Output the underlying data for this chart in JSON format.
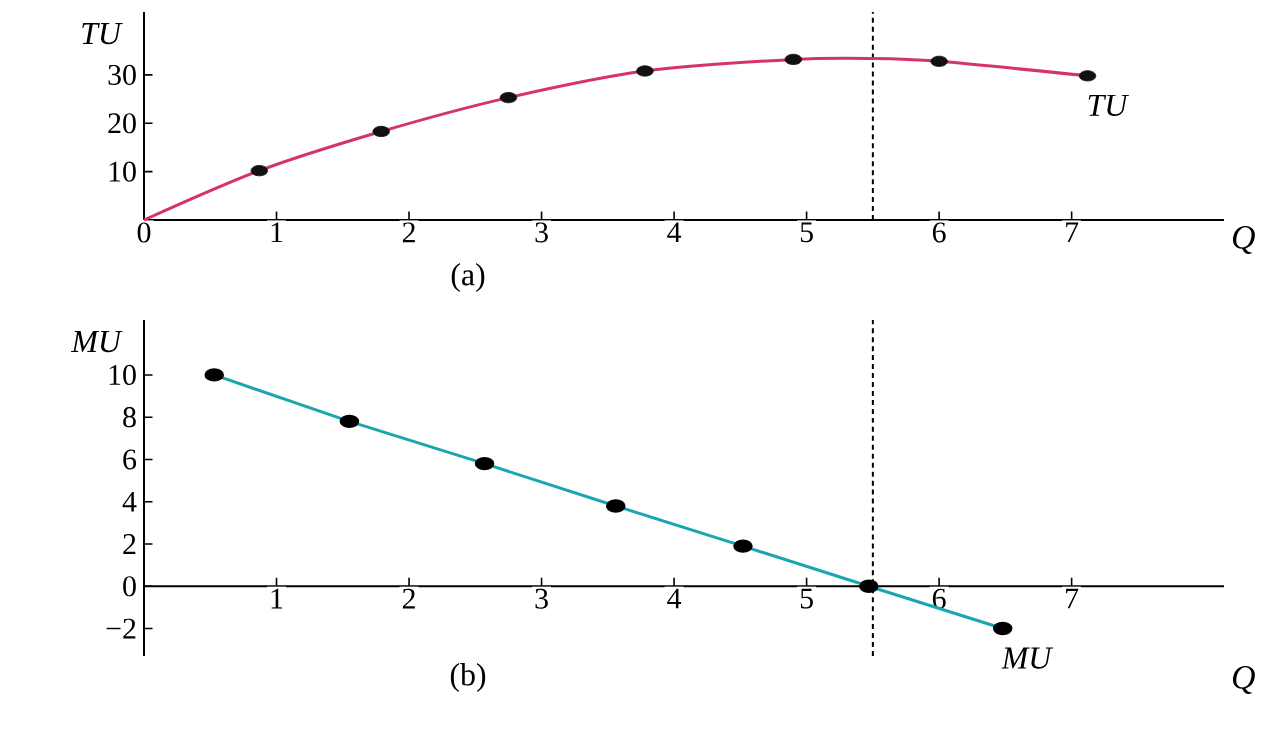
{
  "chart_data": [
    {
      "type": "line",
      "title": "(a)",
      "xlabel": "Q",
      "ylabel": "TU",
      "xlim": [
        0,
        8.15
      ],
      "ylim": [
        0,
        43
      ],
      "xticks": [
        0,
        1,
        2,
        3,
        4,
        5,
        6,
        7
      ],
      "yticks": [
        10,
        20,
        30
      ],
      "series": [
        {
          "name": "TU",
          "color": "#d6336c",
          "x": [
            0,
            0.87,
            1.79,
            2.75,
            3.78,
            4.9,
            5.5,
            6.0,
            7.12
          ],
          "values": [
            0,
            10.2,
            18.3,
            25.3,
            30.8,
            33.2,
            33.4,
            32.8,
            29.8
          ]
        },
        {
          "type": "scatter",
          "color": "#111111",
          "marker": "circle",
          "x": [
            0.87,
            1.79,
            2.75,
            3.78,
            4.9,
            6.0,
            7.12
          ],
          "values": [
            10.2,
            18.3,
            25.3,
            30.8,
            33.2,
            32.8,
            29.8
          ]
        }
      ],
      "ref_lines": [
        {
          "axis": "x",
          "value": 5.5,
          "line_style": "dashed"
        }
      ]
    },
    {
      "type": "line",
      "title": "(b)",
      "xlabel": "Q",
      "ylabel": "MU",
      "xlim": [
        0,
        8.15
      ],
      "ylim": [
        -3.3,
        12.6
      ],
      "xticks": [
        1,
        2,
        3,
        4,
        5,
        6,
        7
      ],
      "yticks": [
        {
          "value": -2,
          "label": "−2"
        },
        0,
        2,
        4,
        6,
        8,
        10
      ],
      "series": [
        {
          "name": "MU",
          "color": "#1aa6b0",
          "marker": "circle",
          "x": [
            0.53,
            1.55,
            2.57,
            3.56,
            4.52,
            5.47,
            6.48
          ],
          "values": [
            10,
            7.8,
            5.8,
            3.8,
            1.9,
            0,
            -2
          ]
        }
      ],
      "ref_lines": [
        {
          "axis": "x",
          "value": 5.5,
          "line_style": "dashed"
        }
      ]
    }
  ]
}
